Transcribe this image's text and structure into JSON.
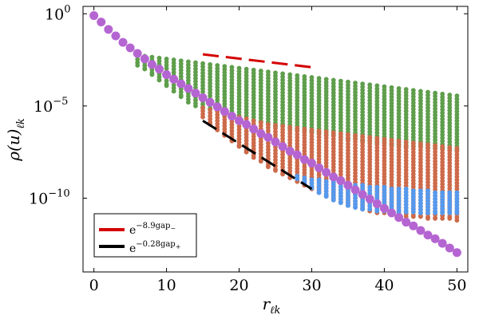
{
  "chart_data": {
    "type": "scatter",
    "title": "",
    "xlabel": "r",
    "xlabel_sub": "ℓk",
    "ylabel": "ρ(u)",
    "ylabel_sub": "ℓk",
    "yscale": "log",
    "xlim": [
      -1.5,
      51.5
    ],
    "ylim_log10": [
      -14.0,
      0.4
    ],
    "xticks": [
      0,
      10,
      20,
      30,
      40,
      50
    ],
    "yticks": [
      {
        "log10": 0,
        "base": "10",
        "exp": "0"
      },
      {
        "log10": -5,
        "base": "10",
        "exp": "−5"
      },
      {
        "log10": -10,
        "base": "10",
        "exp": "−10"
      }
    ],
    "grid": false,
    "legend_position": "bottom-left",
    "legend": [
      {
        "label": "e",
        "exp": "−8.9gap",
        "exp_sub": "−",
        "color": "#d40000"
      },
      {
        "label": "e",
        "exp": "−0.28gap",
        "exp_sub": "+",
        "color": "#000000"
      }
    ],
    "series": [
      {
        "name": "green upper band",
        "color": "#5f9e4c",
        "x_start": 6,
        "x_end": 50,
        "top_log10": [
          -2.3,
          -2.3,
          -2.35,
          -2.4,
          -2.45,
          -2.5,
          -2.55,
          -2.6,
          -2.65,
          -2.7,
          -2.75,
          -2.8,
          -2.85,
          -2.9,
          -2.95,
          -3.0,
          -3.05,
          -3.1,
          -3.15,
          -3.2,
          -3.25,
          -3.3,
          -3.35,
          -3.4,
          -3.45,
          -3.5,
          -3.55,
          -3.6,
          -3.65,
          -3.7,
          -3.75,
          -3.8,
          -3.85,
          -3.9,
          -3.95,
          -4.0,
          -4.05,
          -4.1,
          -4.15,
          -4.2,
          -4.25,
          -4.3,
          -4.35,
          -4.4,
          -4.45
        ],
        "bottom_log10": [
          -2.8,
          -3.0,
          -3.3,
          -3.6,
          -3.9,
          -4.2,
          -4.5,
          -4.8,
          -5.0,
          -5.1,
          -5.2,
          -5.3,
          -5.5,
          -5.5,
          -5.6,
          -5.7,
          -5.8,
          -5.9,
          -6.0,
          -6.1,
          -6.1,
          -6.2,
          -6.3,
          -6.4,
          -6.4,
          -6.5,
          -6.6,
          -6.6,
          -6.7,
          -6.8,
          -6.8,
          -6.9,
          -6.9,
          -7.0,
          -7.0,
          -7.1,
          -7.1,
          -7.2,
          -7.2,
          -7.2,
          -7.3,
          -7.3,
          -7.3,
          -7.4,
          -7.4
        ]
      },
      {
        "name": "orange middle band",
        "color": "#cd6a4a",
        "x_start": 15,
        "x_end": 50,
        "top_log10": [
          -5.1,
          -5.2,
          -5.3,
          -5.4,
          -5.5,
          -5.6,
          -5.7,
          -5.8,
          -5.9,
          -6.0,
          -6.05,
          -6.1,
          -6.15,
          -6.2,
          -6.25,
          -6.3,
          -6.35,
          -6.4,
          -6.45,
          -6.5,
          -6.55,
          -6.6,
          -6.65,
          -6.7,
          -6.75,
          -6.8,
          -6.85,
          -6.9,
          -6.95,
          -7.0,
          -7.05,
          -7.1,
          -7.15,
          -7.2,
          -7.25,
          -7.3
        ],
        "bottom_log10": [
          -5.6,
          -6.0,
          -6.3,
          -6.6,
          -6.9,
          -7.2,
          -7.5,
          -7.8,
          -8.0,
          -8.3,
          -8.5,
          -8.7,
          -8.9,
          -9.1,
          -9.3,
          -9.5,
          -9.7,
          -9.9,
          -10.1,
          -10.2,
          -10.4,
          -10.5,
          -10.6,
          -10.7,
          -10.8,
          -10.8,
          -10.9,
          -10.9,
          -11.0,
          -11.0,
          -11.0,
          -11.1,
          -11.1,
          -11.1,
          -11.1,
          -11.2
        ]
      },
      {
        "name": "blue lower band",
        "color": "#5599ee",
        "x_start": 28,
        "x_end": 50,
        "top_log10": [
          -8.8,
          -8.9,
          -9.0,
          -9.0,
          -9.1,
          -9.1,
          -9.2,
          -9.2,
          -9.3,
          -9.3,
          -9.4,
          -9.4,
          -9.4,
          -9.5,
          -9.5,
          -9.5,
          -9.6,
          -9.6,
          -9.6,
          -9.7,
          -9.7,
          -9.7,
          -9.7
        ],
        "bottom_log10": [
          -8.95,
          -9.2,
          -9.45,
          -9.7,
          -9.9,
          -10.1,
          -10.25,
          -10.4,
          -10.5,
          -10.6,
          -10.6,
          -10.7,
          -10.7,
          -10.7,
          -10.75,
          -10.75,
          -10.75,
          -10.8,
          -10.8,
          -10.8,
          -10.8,
          -10.8,
          -10.8
        ]
      },
      {
        "name": "purple diagonal",
        "color": "#b565d2",
        "x": [
          0,
          1,
          2,
          3,
          4,
          5,
          6,
          7,
          8,
          9,
          10,
          11,
          12,
          13,
          14,
          15,
          16,
          17,
          18,
          19,
          20,
          21,
          22,
          23,
          24,
          25,
          26,
          27,
          28,
          29,
          30,
          31,
          32,
          33,
          34,
          35,
          36,
          37,
          38,
          39,
          40,
          41,
          42,
          43,
          44,
          45,
          46,
          47,
          48,
          49,
          50
        ],
        "log10": [
          -0.1,
          -0.45,
          -0.85,
          -1.2,
          -1.55,
          -1.85,
          -2.15,
          -2.45,
          -2.75,
          -3.0,
          -3.3,
          -3.55,
          -3.8,
          -4.05,
          -4.3,
          -4.55,
          -4.8,
          -5.05,
          -5.3,
          -5.55,
          -5.8,
          -6.0,
          -6.25,
          -6.5,
          -6.7,
          -6.95,
          -7.2,
          -7.45,
          -7.65,
          -7.9,
          -8.1,
          -8.35,
          -8.6,
          -8.85,
          -9.05,
          -9.3,
          -9.55,
          -9.8,
          -10.05,
          -10.3,
          -10.55,
          -10.8,
          -11.05,
          -11.3,
          -11.5,
          -11.75,
          -12.0,
          -12.2,
          -12.45,
          -12.7,
          -12.95
        ]
      }
    ],
    "reference_lines": [
      {
        "name": "red dashed",
        "color": "#d40000",
        "x": [
          15,
          30
        ],
        "log10": [
          -2.2,
          -2.9
        ]
      },
      {
        "name": "black dashed",
        "color": "#000000",
        "x": [
          15,
          30
        ],
        "log10": [
          -5.8,
          -9.5
        ]
      }
    ]
  }
}
